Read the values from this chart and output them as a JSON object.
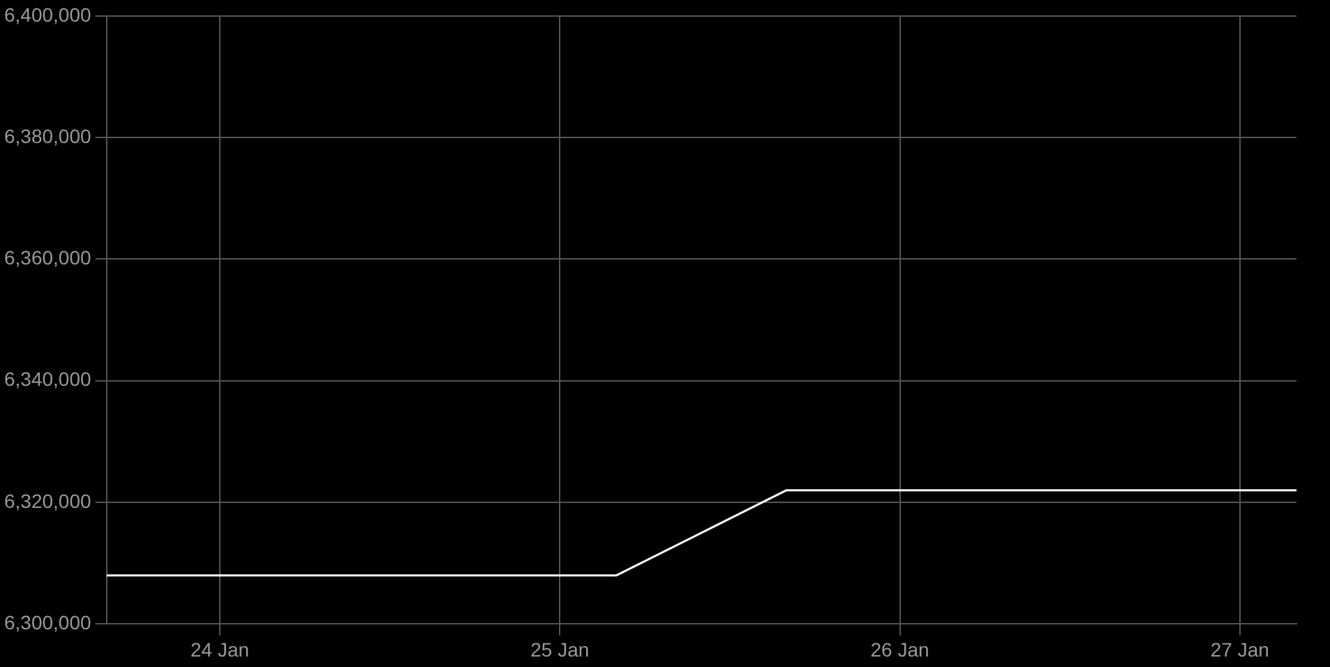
{
  "chart_data": {
    "type": "line",
    "x": [
      "--01-23T16:00",
      "--01-25T04:00",
      "--01-25T16:00",
      "--01-27T04:00"
    ],
    "series": [
      {
        "color": "#ffffff",
        "values": [
          6308000,
          6308000,
          6322000,
          6322000
        ]
      }
    ],
    "xlim": [
      "--01-23T16:00",
      "--01-27T04:00"
    ],
    "xticks": [
      {
        "value": "--01-24",
        "label": "24 Jan"
      },
      {
        "value": "--01-25",
        "label": "25 Jan"
      },
      {
        "value": "--01-26",
        "label": "26 Jan"
      },
      {
        "value": "--01-27",
        "label": "27 Jan"
      }
    ],
    "ylim": [
      6300000,
      6400000
    ],
    "yticks": [
      {
        "value": 6300000,
        "label": "6,300,000"
      },
      {
        "value": 6320000,
        "label": "6,320,000"
      },
      {
        "value": 6340000,
        "label": "6,340,000"
      },
      {
        "value": 6360000,
        "label": "6,360,000"
      },
      {
        "value": 6380000,
        "label": "6,380,000"
      },
      {
        "value": 6400000,
        "label": "6,400,000"
      }
    ],
    "grid": true,
    "legend": false,
    "marker": "none",
    "line_style": "solid"
  }
}
